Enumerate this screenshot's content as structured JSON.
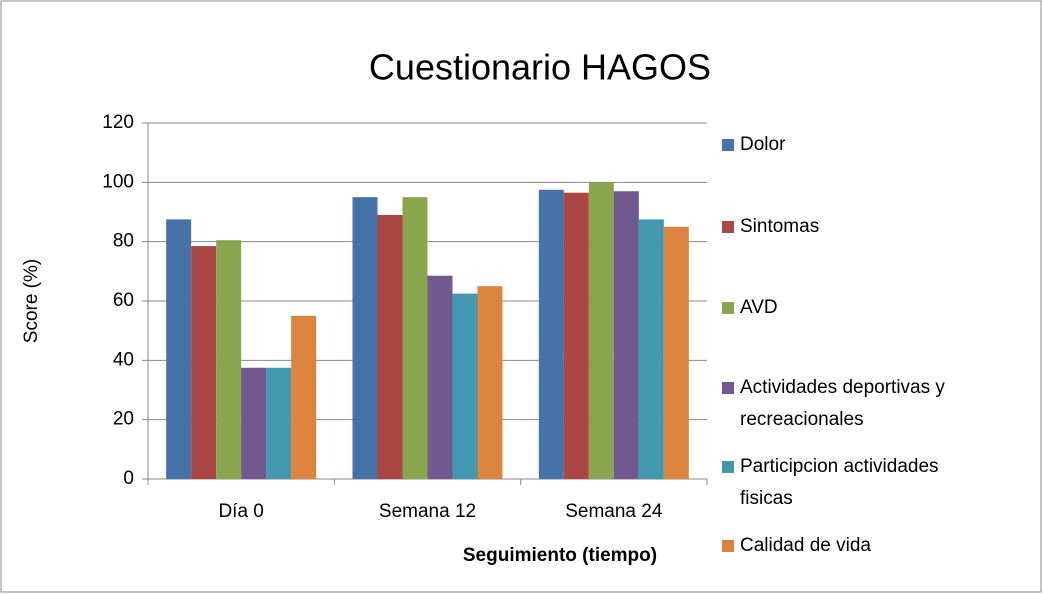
{
  "chart_data": {
    "type": "bar",
    "title": "Cuestionario HAGOS",
    "xlabel": "Seguimiento (tiempo)",
    "ylabel": "Score (%)",
    "categories": [
      "Día 0",
      "Semana 12",
      "Semana 24"
    ],
    "series": [
      {
        "name": "Dolor",
        "color": "#4572a7",
        "values": [
          87.5,
          95,
          97.5
        ]
      },
      {
        "name": "Sintomas",
        "color": "#aa4643",
        "values": [
          78.5,
          89,
          96.5
        ]
      },
      {
        "name": "AVD",
        "color": "#89a54e",
        "values": [
          80.5,
          95,
          100
        ]
      },
      {
        "name": "Actividades deportivas y recreacionales",
        "color": "#71588f",
        "values": [
          37.5,
          68.5,
          97
        ]
      },
      {
        "name": "Participcion actividades fisicas",
        "color": "#4198af",
        "values": [
          37.5,
          62.5,
          87.5
        ]
      },
      {
        "name": "Calidad de vida",
        "color": "#db843d",
        "values": [
          55,
          65,
          85
        ]
      }
    ],
    "ylim": [
      0,
      120
    ],
    "yticks": [
      0,
      20,
      40,
      60,
      80,
      100,
      120
    ],
    "grid": true,
    "legend": "right"
  }
}
